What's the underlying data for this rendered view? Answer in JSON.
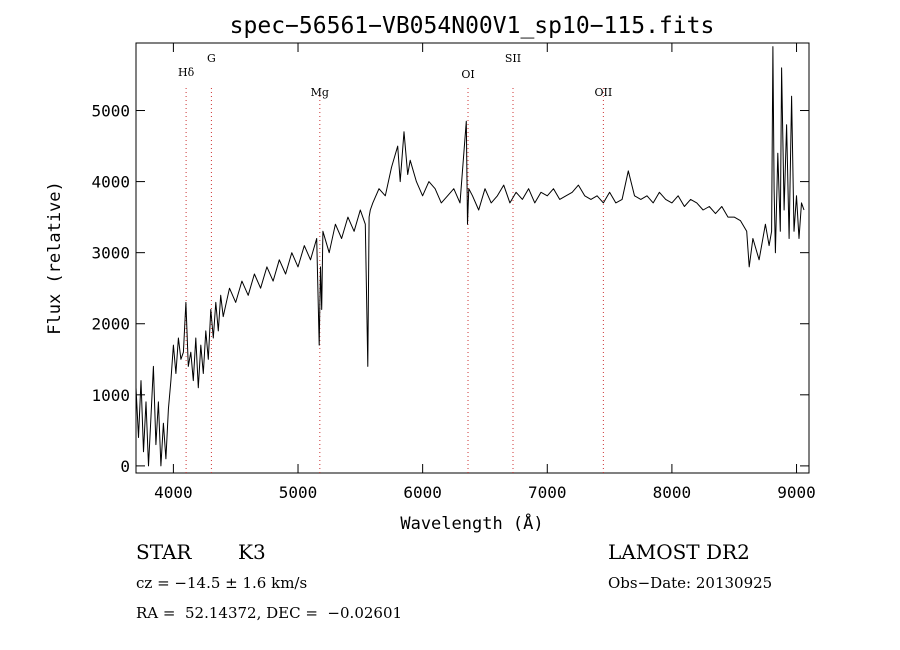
{
  "chart_data": {
    "type": "line",
    "title": "spec−56561−VB054N00V1_sp10−115.fits",
    "xlabel": "Wavelength (Å)",
    "ylabel": "Flux (relative)",
    "xlim": [
      3700,
      9100
    ],
    "ylim": [
      -100,
      5950
    ],
    "x_ticks": [
      4000,
      5000,
      6000,
      7000,
      8000,
      9000
    ],
    "y_ticks": [
      0,
      1000,
      2000,
      3000,
      4000,
      5000
    ],
    "grid": false,
    "line_color": "#000000",
    "marker_color": "#cc3333",
    "line_markers": [
      {
        "label": "Hδ",
        "x": 4102
      },
      {
        "label": "G",
        "x": 4305
      },
      {
        "label": "Mg",
        "x": 5175
      },
      {
        "label": "OI",
        "x": 6364
      },
      {
        "label": "SII",
        "x": 6725
      },
      {
        "label": "OII",
        "x": 7450
      }
    ],
    "series": [
      {
        "x": [
          3700,
          3720,
          3740,
          3760,
          3780,
          3800,
          3820,
          3840,
          3860,
          3880,
          3900,
          3920,
          3940,
          3960,
          3980,
          4000,
          4020,
          4040,
          4060,
          4080,
          4100,
          4120,
          4140,
          4160,
          4180,
          4200,
          4220,
          4240,
          4260,
          4280,
          4300,
          4320,
          4340,
          4360,
          4380,
          4400,
          4450,
          4500,
          4550,
          4600,
          4650,
          4700,
          4750,
          4800,
          4850,
          4900,
          4950,
          5000,
          5050,
          5100,
          5150,
          5170,
          5180,
          5190,
          5200,
          5250,
          5300,
          5350,
          5400,
          5450,
          5500,
          5540,
          5560,
          5570,
          5580,
          5600,
          5650,
          5700,
          5750,
          5800,
          5820,
          5850,
          5880,
          5900,
          5950,
          6000,
          6050,
          6100,
          6150,
          6200,
          6250,
          6300,
          6350,
          6360,
          6370,
          6400,
          6450,
          6500,
          6550,
          6600,
          6650,
          6700,
          6750,
          6800,
          6850,
          6900,
          6950,
          7000,
          7050,
          7100,
          7150,
          7200,
          7250,
          7300,
          7350,
          7400,
          7450,
          7500,
          7550,
          7600,
          7650,
          7700,
          7750,
          7800,
          7850,
          7900,
          7950,
          8000,
          8050,
          8100,
          8150,
          8200,
          8250,
          8300,
          8350,
          8400,
          8450,
          8500,
          8550,
          8600,
          8620,
          8650,
          8700,
          8750,
          8780,
          8800,
          8810,
          8820,
          8830,
          8850,
          8870,
          8880,
          8900,
          8920,
          8940,
          8960,
          8980,
          9000,
          9020,
          9040,
          9060
        ],
        "y": [
          1100,
          400,
          1200,
          200,
          900,
          0,
          700,
          1400,
          300,
          900,
          0,
          600,
          100,
          800,
          1200,
          1700,
          1300,
          1800,
          1500,
          1600,
          2300,
          1400,
          1600,
          1200,
          1800,
          1100,
          1700,
          1300,
          1900,
          1500,
          2200,
          1800,
          2300,
          1900,
          2400,
          2100,
          2500,
          2300,
          2600,
          2400,
          2700,
          2500,
          2800,
          2600,
          2900,
          2700,
          3000,
          2800,
          3100,
          2900,
          3200,
          1700,
          2800,
          2200,
          3300,
          3000,
          3400,
          3200,
          3500,
          3300,
          3600,
          3400,
          1400,
          3500,
          3600,
          3700,
          3900,
          3800,
          4200,
          4500,
          4000,
          4700,
          4100,
          4300,
          4000,
          3800,
          4000,
          3900,
          3700,
          3800,
          3900,
          3700,
          4850,
          3400,
          3900,
          3800,
          3600,
          3900,
          3700,
          3800,
          3950,
          3700,
          3850,
          3750,
          3900,
          3700,
          3850,
          3800,
          3900,
          3750,
          3800,
          3850,
          3950,
          3800,
          3750,
          3800,
          3700,
          3850,
          3700,
          3750,
          4150,
          3800,
          3750,
          3800,
          3700,
          3850,
          3750,
          3700,
          3800,
          3650,
          3750,
          3700,
          3600,
          3650,
          3550,
          3650,
          3500,
          3500,
          3450,
          3300,
          2800,
          3200,
          2900,
          3400,
          3100,
          3300,
          5900,
          3900,
          3000,
          4400,
          3300,
          5600,
          3600,
          4800,
          3200,
          5200,
          3300,
          3800,
          3200,
          3700,
          3600
        ],
        "baseline_segment_label": ""
      }
    ]
  },
  "footer": {
    "object_type": "STAR",
    "subclass": "K3",
    "survey": "LAMOST DR2",
    "cz_text": "cz = −14.5 ± 1.6 km/s",
    "obs_date_text": "Obs−Date: 20130925",
    "radec_text": "RA =  52.14372, DEC =  −0.02601"
  }
}
